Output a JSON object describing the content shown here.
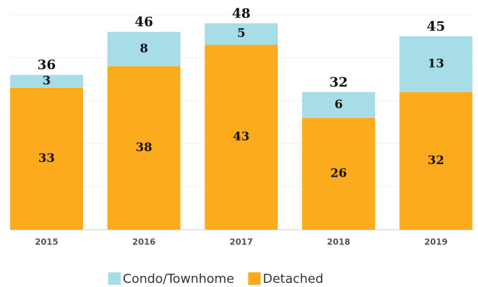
{
  "chart_data": {
    "type": "stacked_bar",
    "categories": [
      "2015",
      "2016",
      "2017",
      "2018",
      "2019"
    ],
    "series": [
      {
        "name": "Detached",
        "color": "#fbab1b",
        "values": [
          33,
          38,
          43,
          26,
          32
        ]
      },
      {
        "name": "Condo/Townhome",
        "color": "#a6dde6",
        "values": [
          3,
          8,
          5,
          6,
          13
        ]
      }
    ],
    "totals": [
      36,
      46,
      48,
      32,
      45
    ],
    "ylim": [
      0,
      50
    ],
    "yticks": [
      0,
      10,
      20,
      30,
      40,
      50
    ],
    "grid": true,
    "legend": "bottom"
  }
}
